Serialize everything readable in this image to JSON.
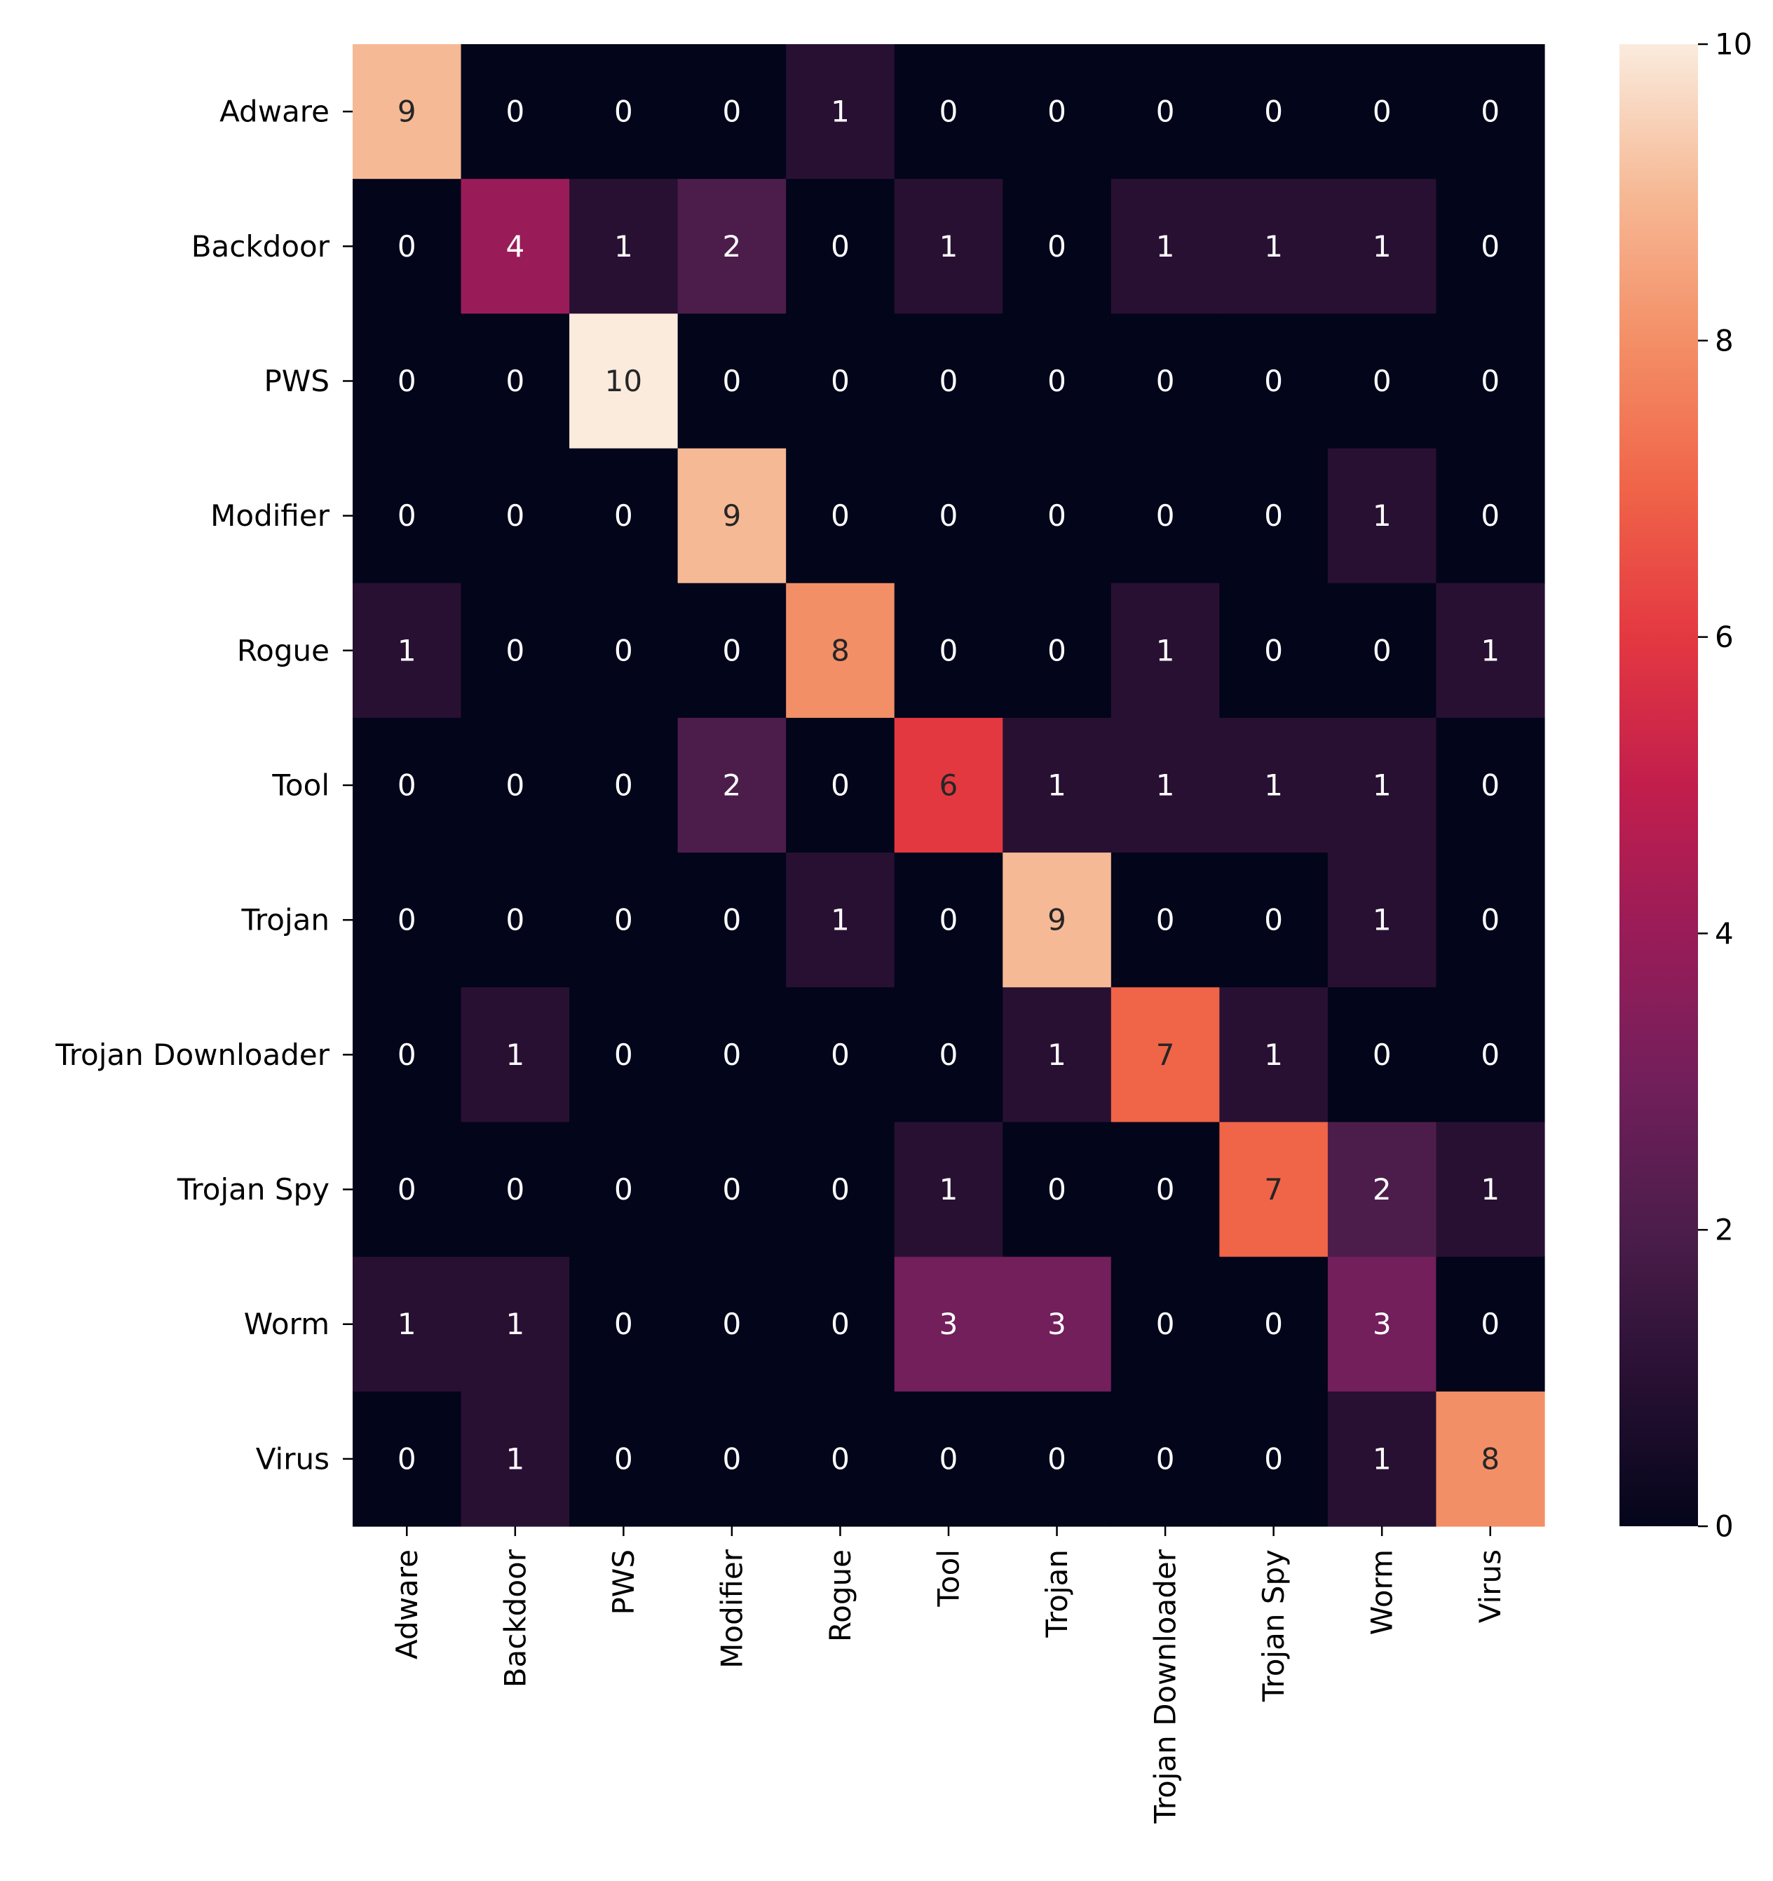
{
  "chart_data": {
    "type": "heatmap",
    "title": "",
    "xlabel": "",
    "ylabel": "",
    "rows": [
      "Adware",
      "Backdoor",
      "PWS",
      "Modifier",
      "Rogue",
      "Tool",
      "Trojan",
      "Trojan Downloader",
      "Trojan Spy",
      "Worm",
      "Virus"
    ],
    "columns": [
      "Adware",
      "Backdoor",
      "PWS",
      "Modifier",
      "Rogue",
      "Tool",
      "Trojan",
      "Trojan Downloader",
      "Trojan Spy",
      "Worm",
      "Virus"
    ],
    "values": [
      [
        9,
        0,
        0,
        0,
        1,
        0,
        0,
        0,
        0,
        0,
        0
      ],
      [
        0,
        4,
        1,
        2,
        0,
        1,
        0,
        1,
        1,
        1,
        0
      ],
      [
        0,
        0,
        10,
        0,
        0,
        0,
        0,
        0,
        0,
        0,
        0
      ],
      [
        0,
        0,
        0,
        9,
        0,
        0,
        0,
        0,
        0,
        1,
        0
      ],
      [
        1,
        0,
        0,
        0,
        8,
        0,
        0,
        1,
        0,
        0,
        1
      ],
      [
        0,
        0,
        0,
        2,
        0,
        6,
        1,
        1,
        1,
        1,
        0
      ],
      [
        0,
        0,
        0,
        0,
        1,
        0,
        9,
        0,
        0,
        1,
        0
      ],
      [
        0,
        1,
        0,
        0,
        0,
        0,
        1,
        7,
        1,
        0,
        0
      ],
      [
        0,
        0,
        0,
        0,
        0,
        1,
        0,
        0,
        7,
        2,
        1
      ],
      [
        1,
        1,
        0,
        0,
        0,
        3,
        3,
        0,
        0,
        3,
        0
      ],
      [
        0,
        1,
        0,
        0,
        0,
        0,
        0,
        0,
        0,
        1,
        8
      ]
    ],
    "colorbar": {
      "min": 0,
      "max": 10,
      "ticks": [
        0,
        2,
        4,
        6,
        8,
        10
      ],
      "colormap": "rocket"
    }
  }
}
